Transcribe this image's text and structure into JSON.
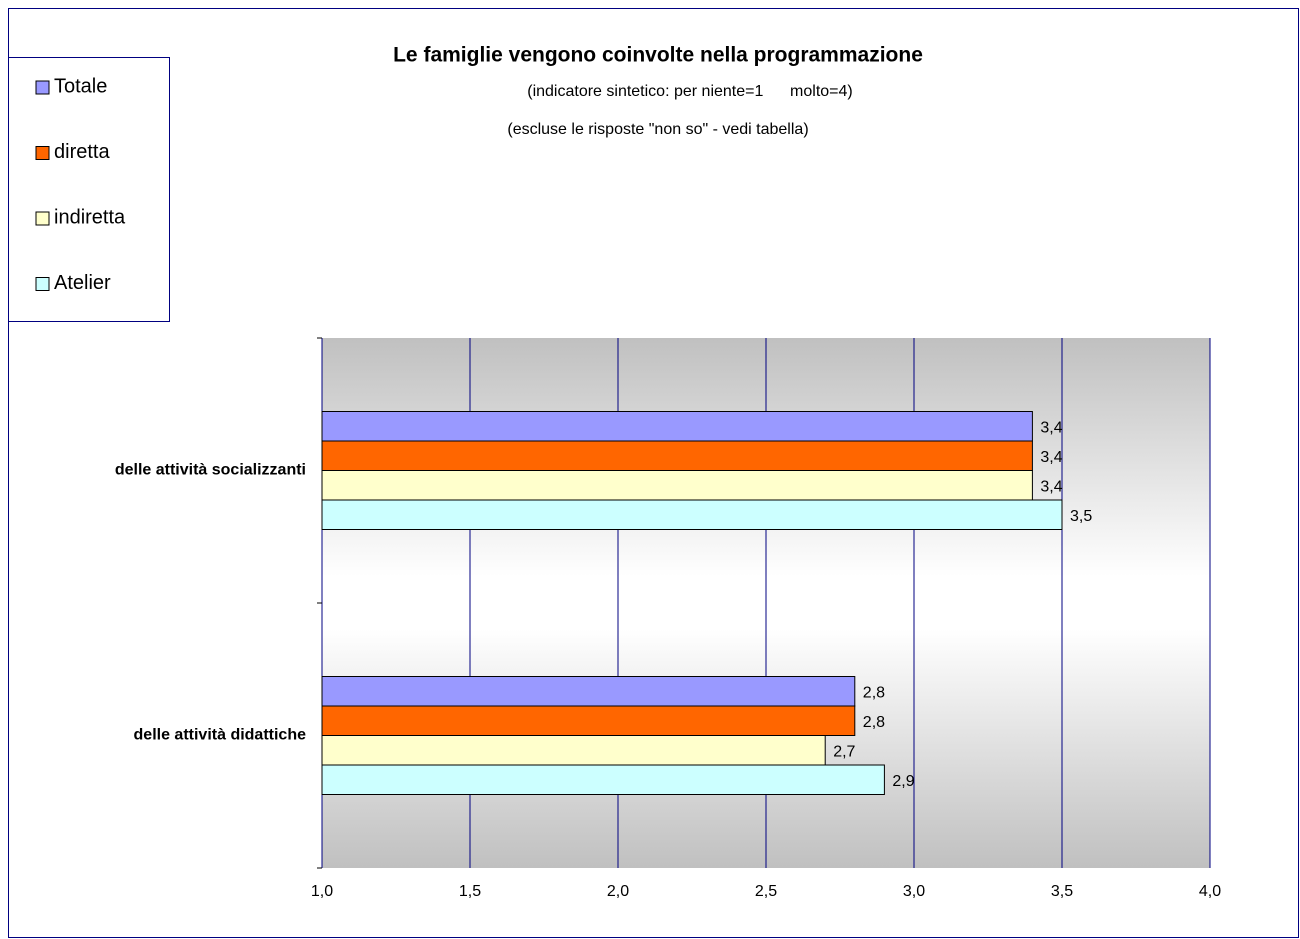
{
  "chart_data": {
    "type": "hbar",
    "title": "Le famiglie vengono coinvolte nella programmazione",
    "subtitles": [
      "(indicatore sintetico: per niente=1      molto=4)",
      "(escluse le risposte \"non so\" - vedi tabella)"
    ],
    "categories": [
      "delle attività socializzanti",
      "delle attività didattiche"
    ],
    "series": [
      {
        "name": "Totale",
        "color": "#9999ff",
        "label_color": "#000080",
        "values": [
          3.4,
          2.8
        ],
        "value_labels": [
          "3,4",
          "2,8"
        ]
      },
      {
        "name": "diretta",
        "color": "#ff6600",
        "label_color": "#000000",
        "values": [
          3.4,
          2.8
        ],
        "value_labels": [
          "3,4",
          "2,8"
        ]
      },
      {
        "name": "indiretta",
        "color": "#ffffcc",
        "label_color": "#000000",
        "values": [
          3.4,
          2.7
        ],
        "value_labels": [
          "3,4",
          "2,7"
        ]
      },
      {
        "name": "Atelier",
        "color": "#ccffff",
        "label_color": "#000000",
        "values": [
          3.5,
          2.9
        ],
        "value_labels": [
          "3,5",
          "2,9"
        ]
      }
    ],
    "xlim": [
      1,
      4
    ],
    "xticks": [
      {
        "value": 1,
        "label": "1,0"
      },
      {
        "value": 1.5,
        "label": "1,5"
      },
      {
        "value": 2,
        "label": "2,0"
      },
      {
        "value": 2.5,
        "label": "2,5"
      },
      {
        "value": 3,
        "label": "3,0"
      },
      {
        "value": 3.5,
        "label": "3,5"
      },
      {
        "value": 4,
        "label": "4,0"
      }
    ],
    "grid": true,
    "legend": "top-left"
  }
}
